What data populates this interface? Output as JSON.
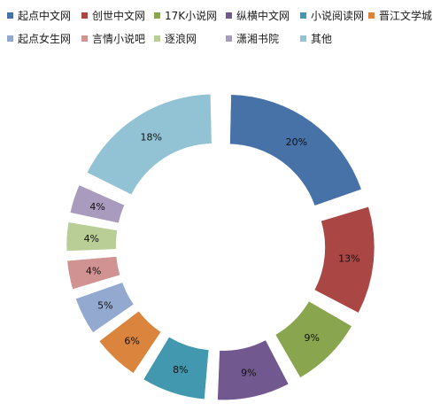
{
  "chart_data": {
    "type": "pie",
    "donut": true,
    "exploded": true,
    "legend_position": "top",
    "categories": [
      "起点中文网",
      "创世中文网",
      "17K小说网",
      "纵横中文网",
      "小说阅读网",
      "晋江文学城",
      "起点女生网",
      "言情小说吧",
      "逐浪网",
      "潇湘书院",
      "其他"
    ],
    "values": [
      20,
      13,
      9,
      9,
      8,
      6,
      5,
      4,
      4,
      4,
      18
    ],
    "value_labels": [
      "20%",
      "13%",
      "9%",
      "9%",
      "8%",
      "6%",
      "5%",
      "4%",
      "4%",
      "4%",
      "18%"
    ],
    "colors": [
      "#4672A8",
      "#AA4644",
      "#89A54E",
      "#71588F",
      "#4198AF",
      "#DB843D",
      "#93A9CF",
      "#D19392",
      "#B9CD96",
      "#A99BBD",
      "#92C3D4"
    ]
  }
}
